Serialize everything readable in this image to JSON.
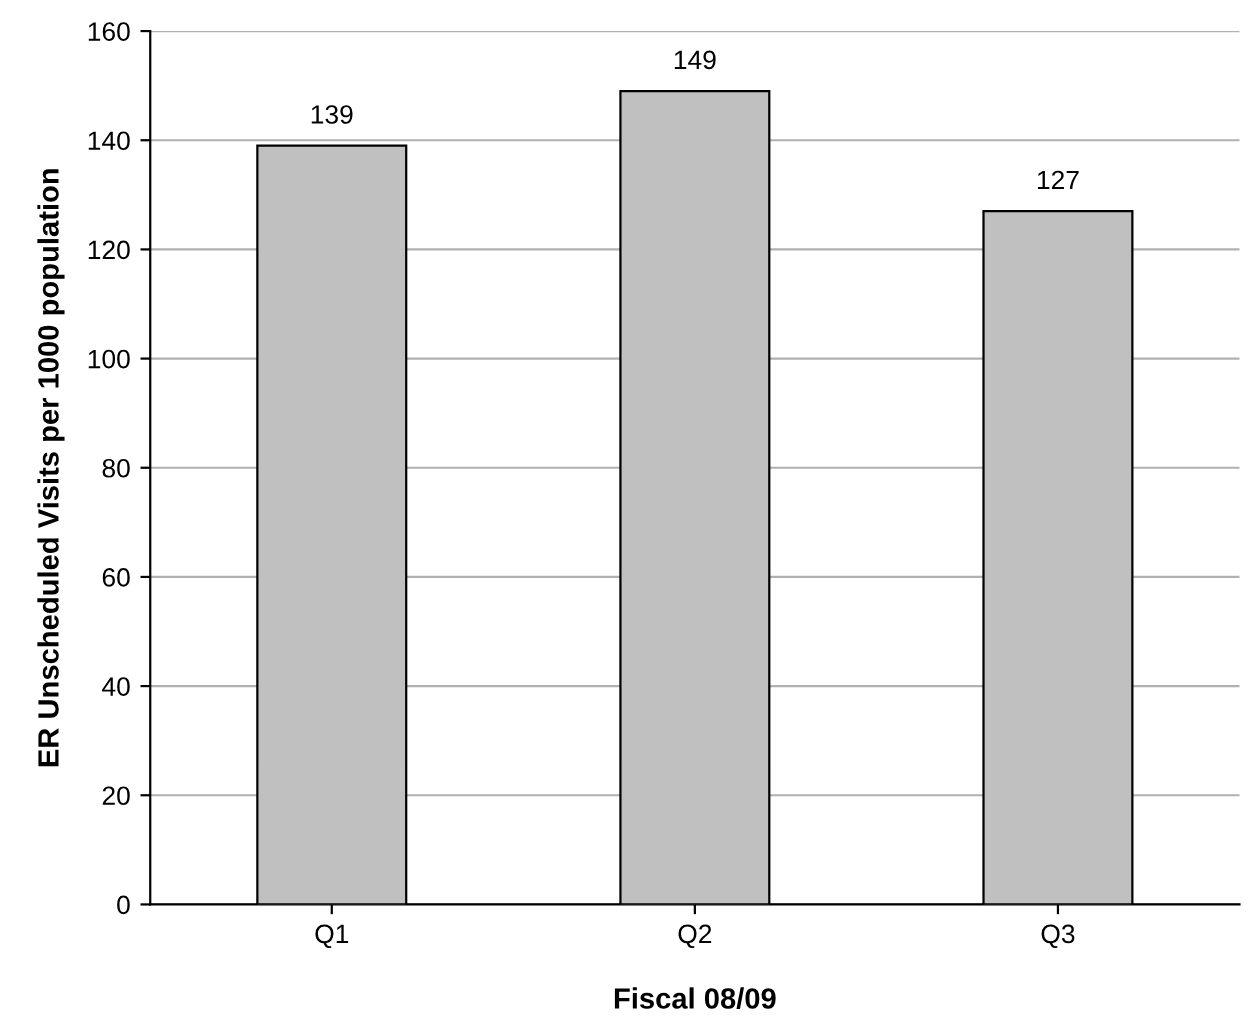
{
  "chart_data": {
    "type": "bar",
    "xlabel": "Fiscal 08/09",
    "ylabel": "ER Unscheduled Visits per 1000 population",
    "categories": [
      "Q1",
      "Q2",
      "Q3"
    ],
    "values": [
      139,
      149,
      127
    ],
    "color": "#c0c0c0",
    "ylim": [
      0,
      160
    ],
    "yticks": [
      0,
      20,
      40,
      60,
      80,
      100,
      120,
      140,
      160
    ],
    "grid": "y",
    "data_labels": true,
    "legend": false
  }
}
